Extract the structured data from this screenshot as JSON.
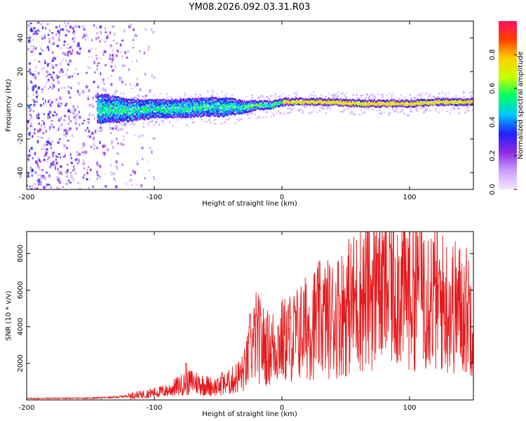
{
  "title": "YM08.2026.092.03.31.R03",
  "chart_data": [
    {
      "type": "heatmap",
      "name": "spectrogram",
      "xlabel": "Height of straight line (km)",
      "ylabel": "Frequency (Hz)",
      "xlim": [
        -200,
        150
      ],
      "ylim": [
        -50,
        50
      ],
      "xticks": [
        -200,
        -100,
        0,
        100
      ],
      "yticks": [
        -40,
        -20,
        0,
        20,
        40
      ],
      "colorbar": {
        "label": "Normalized spectral amplitude",
        "range": [
          0,
          1
        ],
        "ticks": [
          0.0,
          0.2,
          0.4,
          0.6,
          0.8
        ],
        "tick_labels": [
          "0.0",
          "0.2",
          "0.4",
          "0.6",
          "0.8"
        ],
        "colors": [
          "#f4e6ff",
          "#c9a0ff",
          "#8a2be2",
          "#2020ff",
          "#00c8ff",
          "#00ff60",
          "#c8ff00",
          "#ffd000",
          "#ff4000",
          "#ff1060"
        ]
      },
      "features": {
        "noise_region_x": [
          -200,
          -110
        ],
        "band_center_frequency": [
          [
            -140,
            -2
          ],
          [
            -120,
            -3
          ],
          [
            -100,
            -2
          ],
          [
            -80,
            -2
          ],
          [
            -60,
            -1
          ],
          [
            -45,
            -1
          ],
          [
            -30,
            -1
          ],
          [
            -20,
            0
          ],
          [
            -10,
            0
          ],
          [
            0,
            2
          ],
          [
            20,
            2
          ],
          [
            40,
            2
          ],
          [
            60,
            1
          ],
          [
            80,
            1
          ],
          [
            100,
            1
          ],
          [
            120,
            2
          ],
          [
            150,
            2
          ]
        ],
        "band_halfwidth_hz": [
          [
            -140,
            8
          ],
          [
            -120,
            6
          ],
          [
            -100,
            5
          ],
          [
            -80,
            5
          ],
          [
            -60,
            5
          ],
          [
            -45,
            5
          ],
          [
            -30,
            3
          ],
          [
            -15,
            2
          ],
          [
            0,
            1.5
          ],
          [
            150,
            1.5
          ]
        ]
      }
    },
    {
      "type": "line",
      "name": "snr",
      "xlabel": "Height of straight line (km)",
      "ylabel": "SNR (10 * v/v)",
      "xlim": [
        -200,
        150
      ],
      "ylim": [
        0,
        9200
      ],
      "xticks": [
        -200,
        -100,
        0,
        100
      ],
      "yticks": [
        2000,
        4000,
        6000,
        8000
      ],
      "color": "#e41a1c",
      "envelope": [
        [
          -200,
          80
        ],
        [
          -150,
          100
        ],
        [
          -130,
          150
        ],
        [
          -110,
          300
        ],
        [
          -90,
          500
        ],
        [
          -80,
          800
        ],
        [
          -70,
          1000
        ],
        [
          -60,
          800
        ],
        [
          -50,
          700
        ],
        [
          -40,
          1000
        ],
        [
          -30,
          1500
        ],
        [
          -25,
          2500
        ],
        [
          -20,
          3500
        ],
        [
          -15,
          3000
        ],
        [
          -10,
          2800
        ],
        [
          0,
          3200
        ],
        [
          10,
          3500
        ],
        [
          20,
          4000
        ],
        [
          30,
          4400
        ],
        [
          40,
          4500
        ],
        [
          50,
          5000
        ],
        [
          60,
          5500
        ],
        [
          70,
          6000
        ],
        [
          80,
          6000
        ],
        [
          90,
          6300
        ],
        [
          100,
          6000
        ],
        [
          110,
          6500
        ],
        [
          120,
          5500
        ],
        [
          130,
          5200
        ],
        [
          140,
          5000
        ],
        [
          150,
          4800
        ]
      ],
      "peaks": [
        [
          -75,
          2000
        ],
        [
          -47,
          1500
        ],
        [
          -25,
          4700
        ],
        [
          75,
          8000
        ],
        [
          85,
          8500
        ],
        [
          108,
          9300
        ]
      ]
    }
  ]
}
